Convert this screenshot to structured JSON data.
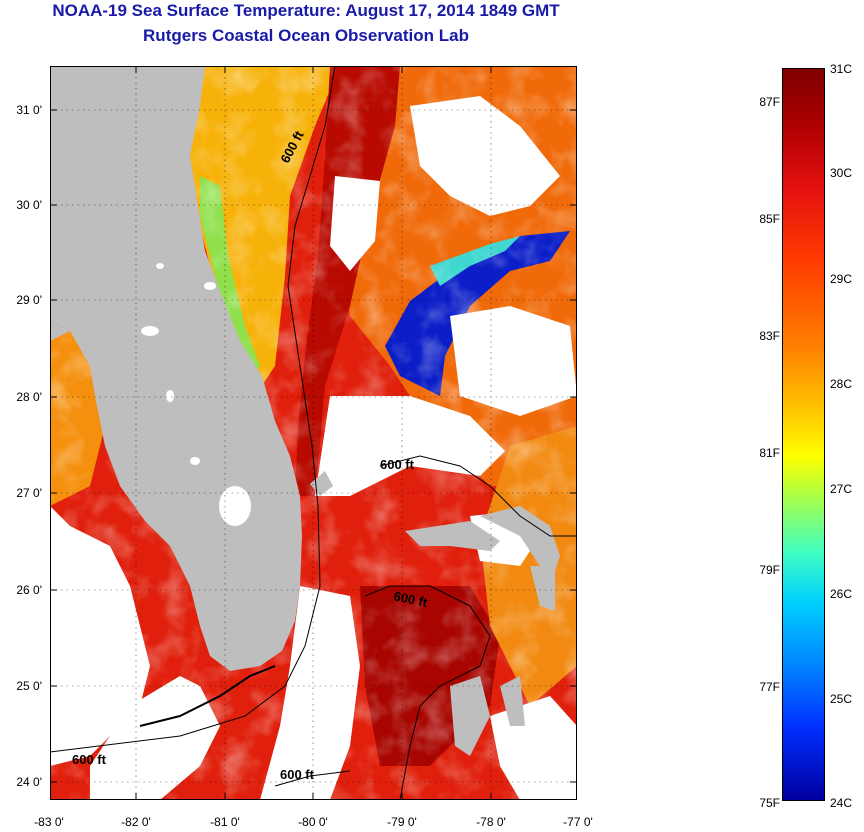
{
  "header": {
    "title_line1": "NOAA-19 Sea Surface Temperature:  August 17, 2014 1849 GMT",
    "title_line2": "Rutgers Coastal Ocean Observation Lab"
  },
  "map": {
    "latitude_ticks": [
      "31 0'",
      "30 0'",
      "29 0'",
      "28 0'",
      "27 0'",
      "26 0'",
      "25 0'",
      "24 0'"
    ],
    "longitude_ticks": [
      "-83 0'",
      "-82 0'",
      "-81 0'",
      "-80 0'",
      "-79 0'",
      "-78 0'",
      "-77 0'"
    ],
    "contour_labels": [
      "600 ft",
      "600 ft",
      "600 ft",
      "600 ft",
      "600 ft"
    ],
    "land_color": "#bebebe",
    "cloud_color": "#ffffff"
  },
  "colorbar": {
    "celsius_labels": [
      "31C",
      "30C",
      "29C",
      "28C",
      "27C",
      "26C",
      "25C",
      "24C"
    ],
    "fahrenheit_labels": [
      "87F",
      "85F",
      "83F",
      "81F",
      "79F",
      "77F",
      "75F"
    ],
    "colors": [
      "#7f0000",
      "#e21010",
      "#ff8000",
      "#ffff00",
      "#40ffc0",
      "#00d0ff",
      "#0030ff",
      "#0000a0"
    ]
  }
}
